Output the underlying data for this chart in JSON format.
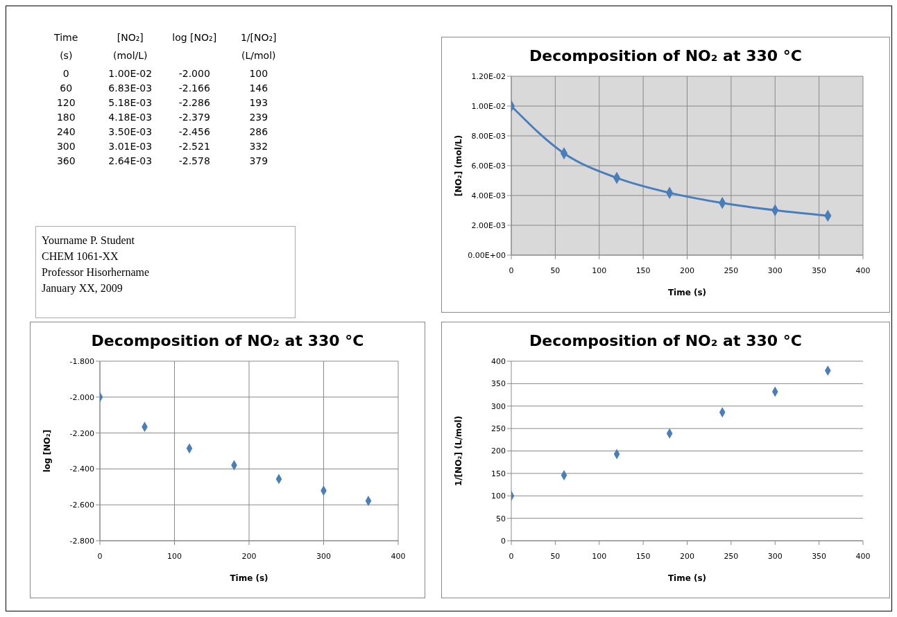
{
  "chart_data": [
    {
      "type": "other",
      "categories": [
        "Time\n(s)",
        "[NO₂]\n(mol/L)",
        "log [NO₂]\n",
        "1/[NO₂]\n(L/mol)"
      ],
      "annotations": [
        "0",
        "1.00E-02",
        "-2.000",
        "100",
        "60",
        "6.83E-03",
        "-2.166",
        "146",
        "120",
        "5.18E-03",
        "-2.286",
        "193",
        "180",
        "4.18E-03",
        "-2.379",
        "239",
        "240",
        "3.50E-03",
        "-2.456",
        "286",
        "300",
        "3.01E-03",
        "-2.521",
        "332",
        "360",
        "2.64E-03",
        "-2.578",
        "379"
      ]
    },
    {
      "type": "line",
      "title": "Decomposition of NO₂ at 330 °C",
      "xlabel": "Time (s)",
      "ylabel": "[NO₂] (mol/L)",
      "x": [
        0,
        60,
        120,
        180,
        240,
        300,
        360
      ],
      "values": [
        0.01,
        0.00683,
        0.00518,
        0.00418,
        0.0035,
        0.00301,
        0.00264
      ],
      "color": "#4a7ebb",
      "xlim": [
        0,
        400
      ],
      "xticks": [
        0,
        50,
        100,
        150,
        200,
        250,
        300,
        350,
        400
      ],
      "ylim": [
        0,
        0.012
      ],
      "yticks": [
        {
          "value": 0,
          "label": "0.00E+00"
        },
        {
          "value": 0.002,
          "label": "2.00E-03"
        },
        {
          "value": 0.004,
          "label": "4.00E-03"
        },
        {
          "value": 0.006,
          "label": "6.00E-03"
        },
        {
          "value": 0.008,
          "label": "8.00E-03"
        },
        {
          "value": 0.01,
          "label": "1.00E-02"
        },
        {
          "value": 0.012,
          "label": "1.20E-02"
        }
      ],
      "grid": true,
      "marker": "diamond",
      "legend": false
    },
    {
      "type": "other",
      "annotations": [
        "Yourname P. Student",
        "CHEM 1061-XX",
        "Professor Hisorhername",
        "January XX, 2009"
      ]
    },
    {
      "type": "scatter",
      "title": "Decomposition of NO₂ at 330 °C",
      "xlabel": "Time (s)",
      "ylabel": "log [NO₂]",
      "x": [
        0,
        60,
        120,
        180,
        240,
        300,
        360
      ],
      "values": [
        -2.0,
        -2.166,
        -2.286,
        -2.379,
        -2.456,
        -2.521,
        -2.578
      ],
      "color": "#4a7ebb",
      "xlim": [
        0,
        400
      ],
      "xticks": [
        0,
        100,
        200,
        300,
        400
      ],
      "ylim": [
        -2.8,
        -1.8
      ],
      "yticks": [
        {
          "value": -2.8,
          "label": "-2.800"
        },
        {
          "value": -2.6,
          "label": "-2.600"
        },
        {
          "value": -2.4,
          "label": "-2.400"
        },
        {
          "value": -2.2,
          "label": "-2.200"
        },
        {
          "value": -2.0,
          "label": "-2.000"
        },
        {
          "value": -1.8,
          "label": "-1.800"
        }
      ],
      "grid": true,
      "marker": "diamond",
      "legend": false
    },
    {
      "type": "scatter",
      "title": "Decomposition of NO₂ at 330 °C",
      "xlabel": "Time (s)",
      "ylabel": "1/[NO₂] (L/mol)",
      "x": [
        0,
        60,
        120,
        180,
        240,
        300,
        360
      ],
      "values": [
        100,
        146,
        193,
        239,
        286,
        332,
        379
      ],
      "color": "#4a7ebb",
      "xlim": [
        0,
        400
      ],
      "xticks": [
        0,
        50,
        100,
        150,
        200,
        250,
        300,
        350,
        400
      ],
      "ylim": [
        0,
        400
      ],
      "yticks": [
        0,
        50,
        100,
        150,
        200,
        250,
        300,
        350,
        400
      ],
      "grid": "y",
      "marker": "diamond",
      "legend": false
    }
  ]
}
